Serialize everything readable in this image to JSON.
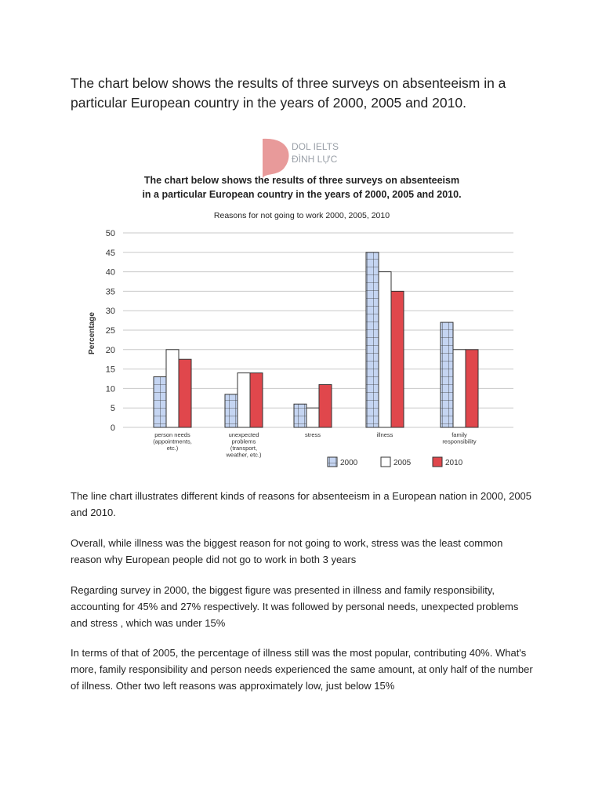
{
  "heading": "The chart below shows the results of three surveys on absenteeism in a particular European country in the years of 2000, 2005 and 2010.",
  "logo": {
    "line1": "DOL IELTS",
    "line2": "ĐÌNH LỰC",
    "color": "#e89a9a"
  },
  "chart_data": {
    "type": "bar",
    "title": "The chart below shows the results of three surveys on absenteeism in a particular European country in the years of 2000, 2005 and 2010.",
    "title_lines": [
      "The chart below shows the results of three surveys on absenteeism",
      "in a particular European country in the years of 2000, 2005 and 2010."
    ],
    "subtitle": "Reasons for not going to work 2000, 2005, 2010",
    "ylabel": "Percentage",
    "xlabel": "",
    "ylim": [
      0,
      50
    ],
    "yticks": [
      0,
      5,
      10,
      15,
      20,
      25,
      30,
      35,
      40,
      45,
      50
    ],
    "grid": true,
    "legend": "bottom-right",
    "categories": [
      [
        "person needs",
        "(appointments,",
        "etc.)"
      ],
      [
        "unexpected",
        "problems",
        "(transport,",
        "weather, etc.)"
      ],
      [
        "stress"
      ],
      [
        "illness"
      ],
      [
        "family",
        "responsibility"
      ]
    ],
    "series": [
      {
        "name": "2000",
        "values": [
          13,
          8.5,
          6,
          45,
          27
        ],
        "color": "#c5d5f2",
        "pattern": "grid"
      },
      {
        "name": "2005",
        "values": [
          20,
          14,
          5,
          40,
          20
        ],
        "color": "#ffffff"
      },
      {
        "name": "2010",
        "values": [
          17.5,
          14,
          11,
          35,
          20
        ],
        "color": "#e0474c"
      }
    ]
  },
  "paragraphs": [
    "The line chart illustrates different kinds of reasons for absenteeism in a European nation in 2000, 2005 and 2010.",
    "Overall, while illness was the biggest reason for not going to work, stress was the least common reason why European people did not go to work in both 3 years",
    "Regarding survey in 2000, the biggest figure was presented in illness and family responsibility, accounting for 45% and 27% respectively. It was followed by personal needs, unexpected problems and stress , which was under 15%",
    "In terms of that of 2005, the percentage of illness still was the most popular, contributing 40%. What's more, family responsibility and person needs experienced the same amount, at only half of the number of illness. Other two left reasons was approximately low, just below 15%"
  ]
}
